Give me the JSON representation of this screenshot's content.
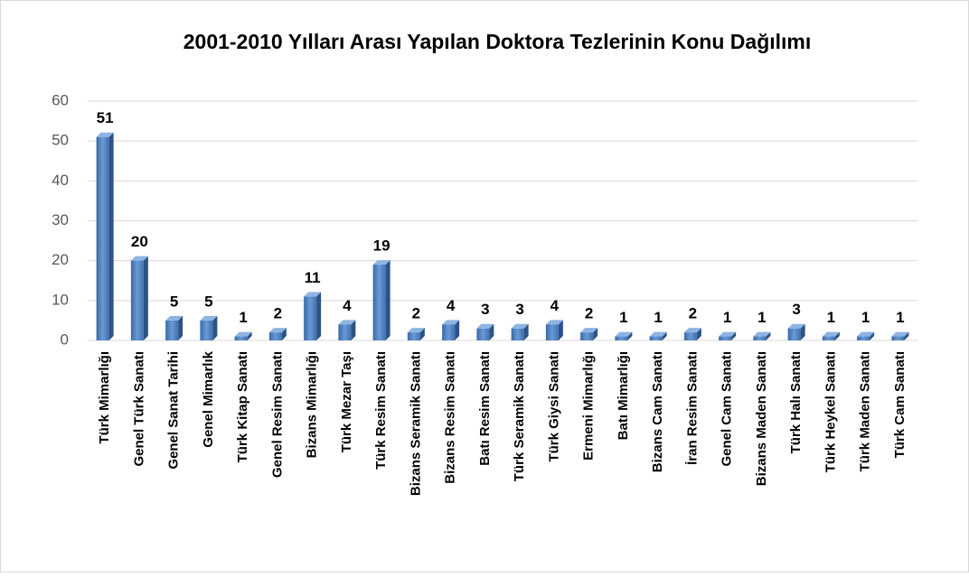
{
  "chart_data": {
    "type": "bar",
    "title": "2001-2010 Yılları Arası Yapılan Doktora Tezlerinin Konu Dağılımı",
    "categories": [
      "Türk Mimarlığı",
      "Genel Türk Sanatı",
      "Genel Sanat Tarihi",
      "Genel Mimarlık",
      "Türk Kitap Sanatı",
      "Genel Resim Sanatı",
      "Bizans Mimarlığı",
      "Türk Mezar Taşı",
      "Türk Resim Sanatı",
      "Bizans Seramik Sanatı",
      "Bizans Resim Sanatı",
      "Batı Resim Sanatı",
      "Türk Seramik Sanatı",
      "Türk Giysi Sanatı",
      "Ermeni Mimarlığı",
      "Batı Mimarlığı",
      "Bizans Cam Sanatı",
      "İran Resim Sanatı",
      "Genel Cam Sanatı",
      "Bizans Maden Sanatı",
      "Türk Halı Sanatı",
      "Türk Heykel Sanatı",
      "Türk Maden Sanatı",
      "Türk Cam Sanatı"
    ],
    "values": [
      51,
      20,
      5,
      5,
      1,
      2,
      11,
      4,
      19,
      2,
      4,
      3,
      3,
      4,
      2,
      1,
      1,
      2,
      1,
      1,
      3,
      1,
      1,
      1
    ],
    "color": "#4f81bd",
    "ylim": [
      0,
      60
    ],
    "yticks": [
      0,
      10,
      20,
      30,
      40,
      50,
      60
    ],
    "grid": true
  }
}
